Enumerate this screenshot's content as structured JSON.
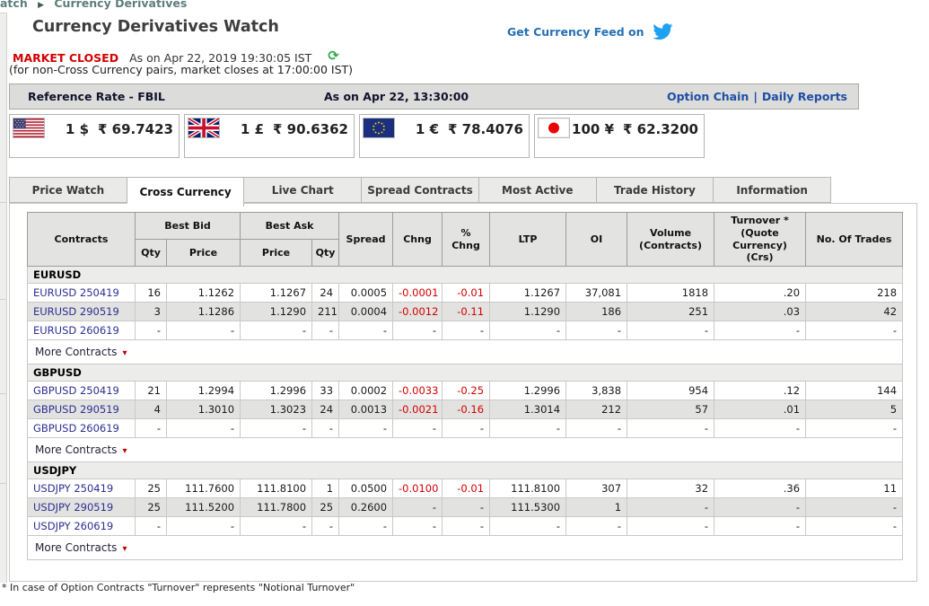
{
  "breadcrumb": {
    "left_fragment": "atch",
    "separator": "▶",
    "current": "Currency Derivatives"
  },
  "header": {
    "title": "Currency Derivatives Watch",
    "feed_label": "Get Currency Feed on",
    "market_status": "MARKET CLOSED",
    "as_on": "As on Apr 22, 2019 19:30:05 IST",
    "refresh_icon": "⟳",
    "note": "(for non-Cross Currency pairs, market closes at 17:00:00 IST)"
  },
  "reference_bar": {
    "label": "Reference Rate - FBIL",
    "as_on": "As on Apr 22, 13:30:00",
    "link_option_chain": "Option Chain",
    "separator": "|",
    "link_daily_reports": "Daily Reports"
  },
  "rates": [
    {
      "flag": "us-flag",
      "unit": "1 $",
      "value": "₹ 69.7423"
    },
    {
      "flag": "uk-flag",
      "unit": "1 £",
      "value": "₹ 90.6362"
    },
    {
      "flag": "eu-flag",
      "unit": "1 €",
      "value": "₹ 78.4076"
    },
    {
      "flag": "jp-flag",
      "unit": "100 ¥",
      "value": "₹ 62.3200"
    }
  ],
  "tabs": [
    {
      "label": "Price Watch",
      "active": false
    },
    {
      "label": "Cross Currency",
      "active": true
    },
    {
      "label": "Live Chart",
      "active": false
    },
    {
      "label": "Spread Contracts",
      "active": false
    },
    {
      "label": "Most Active",
      "active": false
    },
    {
      "label": "Trade History",
      "active": false
    },
    {
      "label": "Information",
      "active": false
    }
  ],
  "table": {
    "headers": {
      "contracts": "Contracts",
      "best_bid": "Best Bid",
      "best_ask": "Best Ask",
      "qty": "Qty",
      "price": "Price",
      "spread": "Spread",
      "chng": "Chng",
      "pct_chng": "%\nChng",
      "ltp": "LTP",
      "oi": "OI",
      "volume": "Volume\n(Contracts)",
      "turnover": "Turnover *\n(Quote\nCurrency)\n(Crs)",
      "trades": "No. Of Trades"
    },
    "more_contracts_label": "More Contracts",
    "more_arrow": "▾",
    "groups": [
      {
        "name": "EURUSD",
        "rows": [
          {
            "contract": "EURUSD 250419",
            "values": [
              "16",
              "1.1262",
              "1.1267",
              "24",
              "0.0005",
              "-0.0001",
              "-0.01",
              "1.1267",
              "37,081",
              "1818",
              ".20",
              "218"
            ]
          },
          {
            "contract": "EURUSD 290519",
            "values": [
              "3",
              "1.1286",
              "1.1290",
              "211",
              "0.0004",
              "-0.0012",
              "-0.11",
              "1.1290",
              "186",
              "251",
              ".03",
              "42"
            ]
          },
          {
            "contract": "EURUSD 260619",
            "values": [
              "-",
              "-",
              "-",
              "-",
              "-",
              "-",
              "-",
              "-",
              "-",
              "-",
              "-",
              "-"
            ]
          }
        ]
      },
      {
        "name": "GBPUSD",
        "rows": [
          {
            "contract": "GBPUSD 250419",
            "values": [
              "21",
              "1.2994",
              "1.2996",
              "33",
              "0.0002",
              "-0.0033",
              "-0.25",
              "1.2996",
              "3,838",
              "954",
              ".12",
              "144"
            ]
          },
          {
            "contract": "GBPUSD 290519",
            "values": [
              "4",
              "1.3010",
              "1.3023",
              "24",
              "0.0013",
              "-0.0021",
              "-0.16",
              "1.3014",
              "212",
              "57",
              ".01",
              "5"
            ]
          },
          {
            "contract": "GBPUSD 260619",
            "values": [
              "-",
              "-",
              "-",
              "-",
              "-",
              "-",
              "-",
              "-",
              "-",
              "-",
              "-",
              "-"
            ]
          }
        ]
      },
      {
        "name": "USDJPY",
        "rows": [
          {
            "contract": "USDJPY 250419",
            "values": [
              "25",
              "111.7600",
              "111.8100",
              "1",
              "0.0500",
              "-0.0100",
              "-0.01",
              "111.8100",
              "307",
              "32",
              ".36",
              "11"
            ]
          },
          {
            "contract": "USDJPY 290519",
            "values": [
              "25",
              "111.5200",
              "111.7800",
              "25",
              "0.2600",
              "-",
              "-",
              "111.5300",
              "1",
              "-",
              "-",
              "-"
            ]
          },
          {
            "contract": "USDJPY 260619",
            "values": [
              "-",
              "-",
              "-",
              "-",
              "-",
              "-",
              "-",
              "-",
              "-",
              "-",
              "-",
              "-"
            ]
          }
        ]
      }
    ]
  },
  "footnote": "* In case of Option Contracts \"Turnover\" represents \"Notional Turnover\"",
  "colors": {
    "negative_red": "#d40000",
    "market_closed_red": "#d40000",
    "link_blue": "#1f4ea6",
    "contract_link_navy": "#2d2f92",
    "twitter_blue": "#1da1f2",
    "refresh_green": "#2faa4a",
    "breadcrumb_teal": "#5f7d7d"
  }
}
